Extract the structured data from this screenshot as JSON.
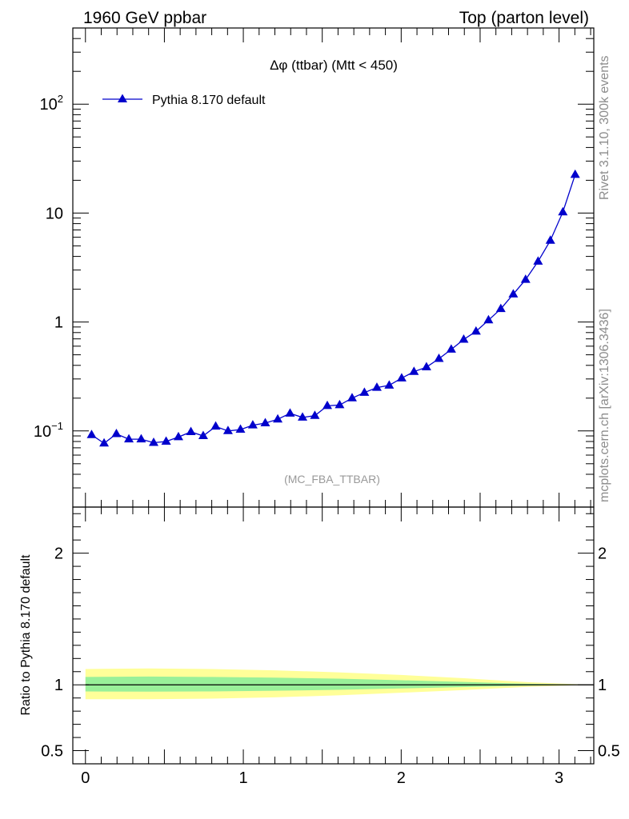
{
  "header": {
    "left": "1960 GeV ppbar",
    "right": "Top (parton level)"
  },
  "side_text": {
    "rivet": "Rivet 3.1.10,  300k events",
    "mcplots": "mcplots.cern.ch [arXiv:1306.3436]"
  },
  "chart_data": [
    {
      "type": "line",
      "title": "Δφ (ttbar) (Mtt < 450)",
      "watermark": "(MC_FBA_TTBAR)",
      "xlim": [
        -0.08,
        3.22
      ],
      "ylim": [
        0.02,
        500
      ],
      "y_scale": "log",
      "y_tick_labels": [
        {
          "value": 0.1,
          "base": "10",
          "exp": "−1"
        },
        {
          "value": 1,
          "text": "1"
        },
        {
          "value": 10,
          "text": "10"
        },
        {
          "value": 100,
          "base": "10",
          "exp": "2"
        }
      ],
      "legend": {
        "position": "top-left"
      },
      "series": [
        {
          "name": "Pythia 8.170 default",
          "color": "#0000cc",
          "marker": "triangle",
          "x": [
            0.039,
            0.118,
            0.196,
            0.275,
            0.353,
            0.432,
            0.511,
            0.589,
            0.668,
            0.746,
            0.825,
            0.903,
            0.982,
            1.06,
            1.139,
            1.218,
            1.296,
            1.375,
            1.453,
            1.532,
            1.61,
            1.689,
            1.767,
            1.846,
            1.924,
            2.003,
            2.081,
            2.16,
            2.239,
            2.317,
            2.396,
            2.474,
            2.553,
            2.631,
            2.71,
            2.788,
            2.867,
            2.945,
            3.024,
            3.102
          ],
          "y": [
            0.092,
            0.077,
            0.094,
            0.084,
            0.084,
            0.078,
            0.08,
            0.088,
            0.098,
            0.09,
            0.11,
            0.1,
            0.103,
            0.113,
            0.118,
            0.128,
            0.145,
            0.133,
            0.138,
            0.17,
            0.173,
            0.2,
            0.225,
            0.25,
            0.262,
            0.305,
            0.35,
            0.385,
            0.46,
            0.56,
            0.69,
            0.82,
            1.04,
            1.32,
            1.8,
            2.45,
            3.6,
            5.6,
            10.2,
            22.5
          ]
        }
      ]
    },
    {
      "type": "area",
      "ylabel": "Ratio to Pythia 8.170 default",
      "xlim": [
        -0.08,
        3.22
      ],
      "ylim": [
        0.4,
        2.35
      ],
      "x_tick_labels": [
        "0",
        "1",
        "2",
        "3"
      ],
      "y_tick_labels": [
        "0.5",
        "1",
        "2"
      ],
      "reference_line": 1,
      "bands": [
        {
          "name": "outer",
          "color": "#ffff99",
          "x": [
            0.0,
            0.4,
            0.8,
            1.2,
            1.6,
            2.0,
            2.4,
            2.8,
            3.2
          ],
          "low": [
            0.89,
            0.89,
            0.895,
            0.905,
            0.92,
            0.94,
            0.96,
            0.985,
            1.0
          ],
          "high": [
            1.12,
            1.125,
            1.12,
            1.11,
            1.095,
            1.075,
            1.05,
            1.02,
            1.0
          ]
        },
        {
          "name": "inner",
          "color": "#99f099",
          "x": [
            0.0,
            0.4,
            0.8,
            1.2,
            1.6,
            2.0,
            2.4,
            2.8,
            3.2
          ],
          "low": [
            0.95,
            0.948,
            0.95,
            0.955,
            0.962,
            0.972,
            0.983,
            0.994,
            1.0
          ],
          "high": [
            1.06,
            1.063,
            1.06,
            1.055,
            1.047,
            1.035,
            1.022,
            1.008,
            1.0
          ]
        }
      ]
    }
  ]
}
